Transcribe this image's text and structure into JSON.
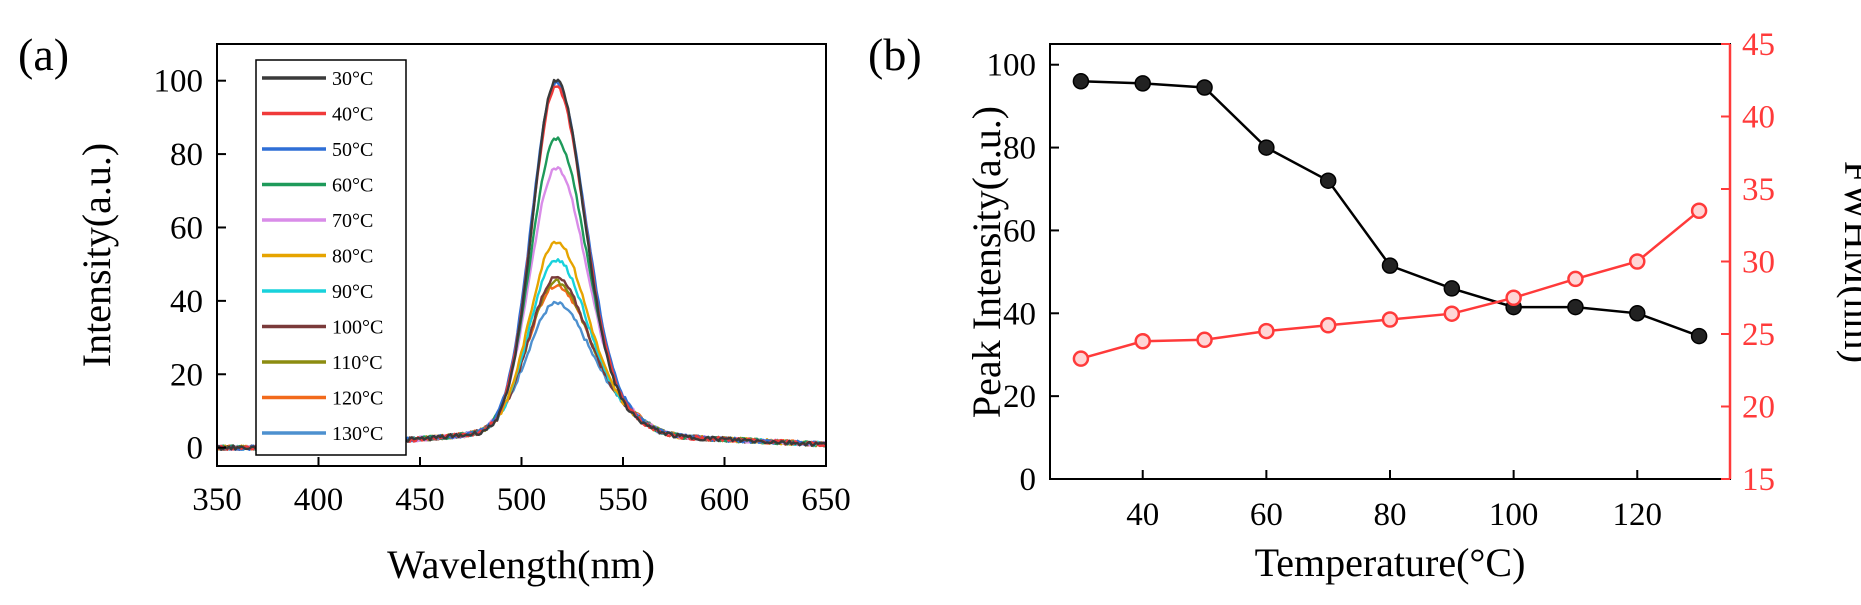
{
  "panels": {
    "a_label": "(a)",
    "b_label": "(b)"
  },
  "chart_data": [
    {
      "type": "line",
      "panel": "(a)",
      "title": "",
      "xlabel": "Wavelength(nm)",
      "ylabel": "Intensity(a.u.)",
      "xlim": [
        350,
        650
      ],
      "ylim": [
        -5,
        110
      ],
      "xticks": [
        350,
        400,
        450,
        500,
        550,
        600,
        650
      ],
      "yticks": [
        0,
        20,
        40,
        60,
        80,
        100
      ],
      "legend_position": "top-left",
      "peak_wavelength": 517,
      "series": [
        {
          "name": "30°C",
          "color": "#3a3a3a",
          "peak": 96
        },
        {
          "name": "40°C",
          "color": "#f03a3a",
          "peak": 94
        },
        {
          "name": "50°C",
          "color": "#2f6fd6",
          "peak": 95
        },
        {
          "name": "60°C",
          "color": "#1e9a5a",
          "peak": 80
        },
        {
          "name": "70°C",
          "color": "#d98ce8",
          "peak": 72
        },
        {
          "name": "80°C",
          "color": "#e6a400",
          "peak": 52
        },
        {
          "name": "90°C",
          "color": "#18d2dc",
          "peak": 47
        },
        {
          "name": "100°C",
          "color": "#7a3a3a",
          "peak": 42
        },
        {
          "name": "110°C",
          "color": "#8c8c10",
          "peak": 41
        },
        {
          "name": "120°C",
          "color": "#f26a1b",
          "peak": 40
        },
        {
          "name": "130°C",
          "color": "#4d90cf",
          "peak": 35
        }
      ]
    },
    {
      "type": "line",
      "panel": "(b)",
      "title": "",
      "xlabel": "Temperature(°C)",
      "ylabel": "Peak Intensity(a.u.)",
      "y2label": "FWHM(nm)",
      "xlim": [
        25,
        135
      ],
      "ylim": [
        0,
        105
      ],
      "y2lim": [
        15,
        45
      ],
      "xticks": [
        40,
        60,
        80,
        100,
        120
      ],
      "yticks": [
        0,
        20,
        40,
        60,
        80,
        100
      ],
      "y2ticks": [
        15,
        20,
        25,
        30,
        35,
        40,
        45
      ],
      "x": [
        30,
        40,
        50,
        60,
        70,
        80,
        90,
        100,
        110,
        120,
        130
      ],
      "series": [
        {
          "name": "Peak Intensity",
          "axis": "left",
          "color": "#000000",
          "values": [
            96,
            95.5,
            94.5,
            80,
            72,
            51.5,
            46,
            41.5,
            41.5,
            40,
            34.5
          ]
        },
        {
          "name": "FWHM",
          "axis": "right",
          "color": "#ff3a3a",
          "values": [
            23.3,
            24.5,
            24.6,
            25.2,
            25.6,
            26.0,
            26.4,
            27.5,
            28.8,
            30.0,
            33.5
          ]
        }
      ]
    }
  ]
}
